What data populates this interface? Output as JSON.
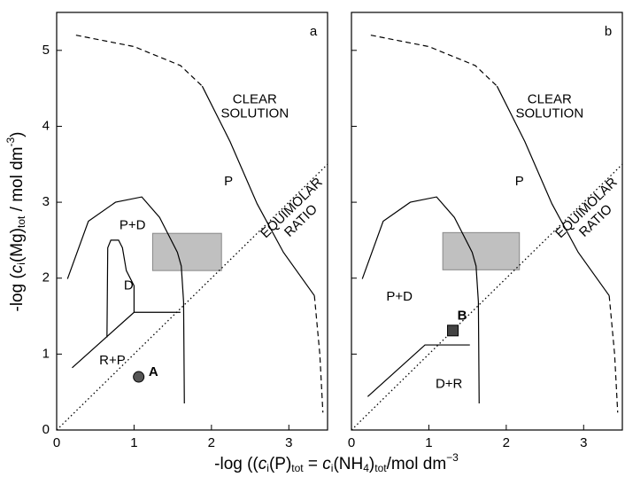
{
  "axis_labels": {
    "x": [
      "-log ((",
      "c",
      "i",
      "(P)",
      "tot",
      " = ",
      "c",
      "i",
      "(NH",
      "4",
      ")",
      "tot",
      "/mol dm",
      "−3"
    ],
    "y": [
      "-log (",
      "c",
      "i",
      "(Mg)",
      "tot",
      " / mol dm",
      "-3",
      ")"
    ]
  },
  "chart_data": [
    {
      "type": "line",
      "panel": "a",
      "xlim": [
        0,
        3.5
      ],
      "ylim": [
        0,
        5.5
      ],
      "xticks": [
        0,
        1,
        2,
        3
      ],
      "yticks": [
        0,
        1,
        2,
        3,
        4,
        5
      ],
      "lines": [
        {
          "style": "dashed",
          "x": [
            0.25,
            1.0,
            1.6,
            1.88
          ],
          "y": [
            5.2,
            5.05,
            4.8,
            4.53
          ]
        },
        {
          "style": "solid",
          "x": [
            1.88,
            2.24,
            2.59,
            2.93,
            3.33
          ],
          "y": [
            4.53,
            3.8,
            2.98,
            2.34,
            1.77
          ]
        },
        {
          "style": "dashed",
          "x": [
            3.33,
            3.4,
            3.44
          ],
          "y": [
            1.77,
            1.0,
            0.23
          ]
        },
        {
          "style": "solid",
          "x": [
            0.14,
            0.41,
            0.76,
            1.1,
            1.33,
            1.56,
            1.61,
            1.64,
            1.65
          ],
          "y": [
            1.99,
            2.75,
            3.0,
            3.07,
            2.8,
            2.34,
            2.16,
            1.69,
            0.35
          ]
        },
        {
          "style": "solid",
          "x": [
            0.65,
            0.66,
            0.7,
            0.8,
            0.85,
            0.9,
            1.0,
            1.0
          ],
          "y": [
            1.22,
            2.4,
            2.5,
            2.5,
            2.4,
            2.1,
            1.9,
            1.55
          ]
        },
        {
          "style": "solid",
          "x": [
            0.2,
            1.0,
            1.6
          ],
          "y": [
            0.82,
            1.55,
            1.55
          ]
        },
        {
          "style": "dotted",
          "x": [
            0,
            3.5
          ],
          "y": [
            0,
            3.5
          ]
        }
      ],
      "rects": [
        {
          "x": [
            1.24,
            2.13
          ],
          "y": [
            2.1,
            2.59
          ],
          "color": "#c0c0c0"
        }
      ],
      "points": [
        {
          "label": "A",
          "marker": "circle",
          "color": "#555555",
          "x": 1.06,
          "y": 0.7,
          "label_x": 1.25,
          "label_y": 0.76
        }
      ],
      "regions": [
        {
          "label": "P+D",
          "x": 0.98,
          "y": 2.69
        },
        {
          "label": "D",
          "x": 0.93,
          "y": 1.9
        },
        {
          "label": "R+P",
          "x": 0.72,
          "y": 0.91
        },
        {
          "label": "P",
          "x": 2.22,
          "y": 3.27
        },
        {
          "label": "CLEAR",
          "x": 2.56,
          "y": 4.35
        },
        {
          "label": "SOLUTION",
          "x": 2.56,
          "y": 4.16
        }
      ],
      "rotated_labels": [
        {
          "label": "EQUIMOLAR",
          "x": 3.04,
          "y": 2.92
        },
        {
          "label": "RATIO",
          "x": 3.16,
          "y": 2.75
        }
      ]
    },
    {
      "type": "line",
      "panel": "b",
      "xlim": [
        0,
        3.5
      ],
      "ylim": [
        0,
        5.5
      ],
      "xticks": [
        0,
        1,
        2,
        3
      ],
      "yticks": [
        0,
        1,
        2,
        3,
        4,
        5
      ],
      "lines": [
        {
          "style": "dashed",
          "x": [
            0.25,
            1.0,
            1.6,
            1.88
          ],
          "y": [
            5.2,
            5.05,
            4.8,
            4.53
          ]
        },
        {
          "style": "solid",
          "x": [
            1.88,
            2.24,
            2.59,
            2.93,
            3.33
          ],
          "y": [
            4.53,
            3.8,
            2.98,
            2.34,
            1.77
          ]
        },
        {
          "style": "dashed",
          "x": [
            3.33,
            3.4,
            3.44
          ],
          "y": [
            1.77,
            1.0,
            0.23
          ]
        },
        {
          "style": "solid",
          "x": [
            0.14,
            0.41,
            0.76,
            1.1,
            1.33,
            1.56,
            1.61,
            1.64,
            1.65
          ],
          "y": [
            1.99,
            2.75,
            3.0,
            3.07,
            2.8,
            2.34,
            2.16,
            1.69,
            0.35
          ]
        },
        {
          "style": "solid",
          "x": [
            0.21,
            0.95,
            1.53
          ],
          "y": [
            0.44,
            1.12,
            1.12
          ]
        },
        {
          "style": "dotted",
          "x": [
            0,
            3.5
          ],
          "y": [
            0,
            3.5
          ]
        }
      ],
      "rects": [
        {
          "x": [
            1.18,
            2.17
          ],
          "y": [
            2.11,
            2.6
          ],
          "color": "#c0c0c0"
        }
      ],
      "points": [
        {
          "label": "B",
          "marker": "square",
          "color": "#444444",
          "x": 1.31,
          "y": 1.31,
          "label_x": 1.43,
          "label_y": 1.5
        }
      ],
      "regions": [
        {
          "label": "P+D",
          "x": 0.62,
          "y": 1.75
        },
        {
          "label": "D+R",
          "x": 1.26,
          "y": 0.6
        },
        {
          "label": "P",
          "x": 2.17,
          "y": 3.27
        },
        {
          "label": "CLEAR",
          "x": 2.56,
          "y": 4.35
        },
        {
          "label": "SOLUTION",
          "x": 2.56,
          "y": 4.16
        }
      ],
      "rotated_labels": [
        {
          "label": "EQUIMOLAR",
          "x": 3.04,
          "y": 2.92
        },
        {
          "label": "RATIO",
          "x": 3.16,
          "y": 2.75
        }
      ]
    }
  ]
}
